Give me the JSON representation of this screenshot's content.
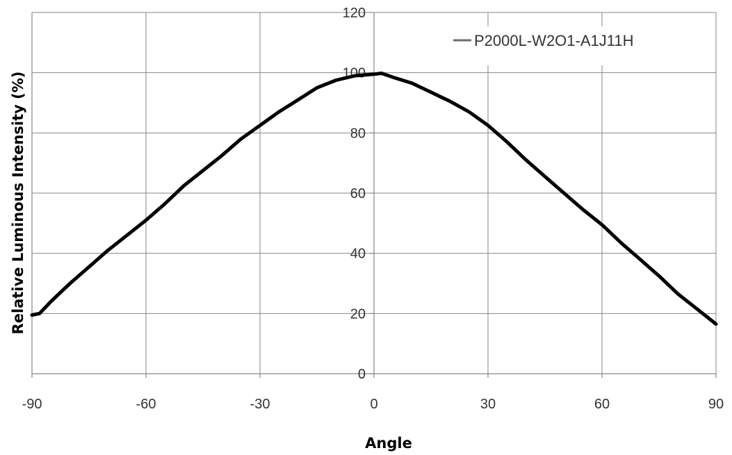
{
  "chart_data": {
    "type": "line",
    "title": "",
    "xlabel": "Angle",
    "ylabel": "Relative Luminous Intensity (%)",
    "xlim": [
      -90,
      90
    ],
    "ylim": [
      0,
      120
    ],
    "x_ticks": [
      -90,
      -60,
      -30,
      0,
      30,
      60,
      90
    ],
    "y_ticks": [
      0,
      20,
      40,
      60,
      80,
      100,
      120
    ],
    "x_tick_labels": [
      "-90",
      "-60",
      "-30",
      "0",
      "30",
      "60",
      "90"
    ],
    "y_tick_labels": [
      "0",
      "20",
      "40",
      "60",
      "80",
      "100",
      "120"
    ],
    "grid": true,
    "legend_position": "top-right",
    "series": [
      {
        "name": "P2000L-W2O1-A1J11H",
        "color": "#000000",
        "legend_color": "#6e6e6e",
        "x": [
          -90,
          -88,
          -85,
          -80,
          -75,
          -70,
          -65,
          -60,
          -55,
          -50,
          -45,
          -40,
          -35,
          -30,
          -25,
          -20,
          -15,
          -10,
          -5,
          0,
          2,
          5,
          10,
          15,
          20,
          25,
          30,
          35,
          40,
          45,
          50,
          55,
          60,
          65,
          70,
          75,
          80,
          85,
          90
        ],
        "y": [
          19.5,
          20,
          24,
          30,
          35.5,
          41,
          46,
          51,
          56.5,
          62.5,
          67.5,
          72.5,
          78,
          82.5,
          87,
          91,
          95,
          97.5,
          99,
          99.5,
          99.8,
          98.5,
          96.5,
          93.5,
          90.5,
          87,
          82.5,
          77,
          71,
          65.5,
          60,
          54.5,
          49.5,
          43.5,
          38,
          32.5,
          26.5,
          21.5,
          16.5
        ]
      }
    ]
  }
}
